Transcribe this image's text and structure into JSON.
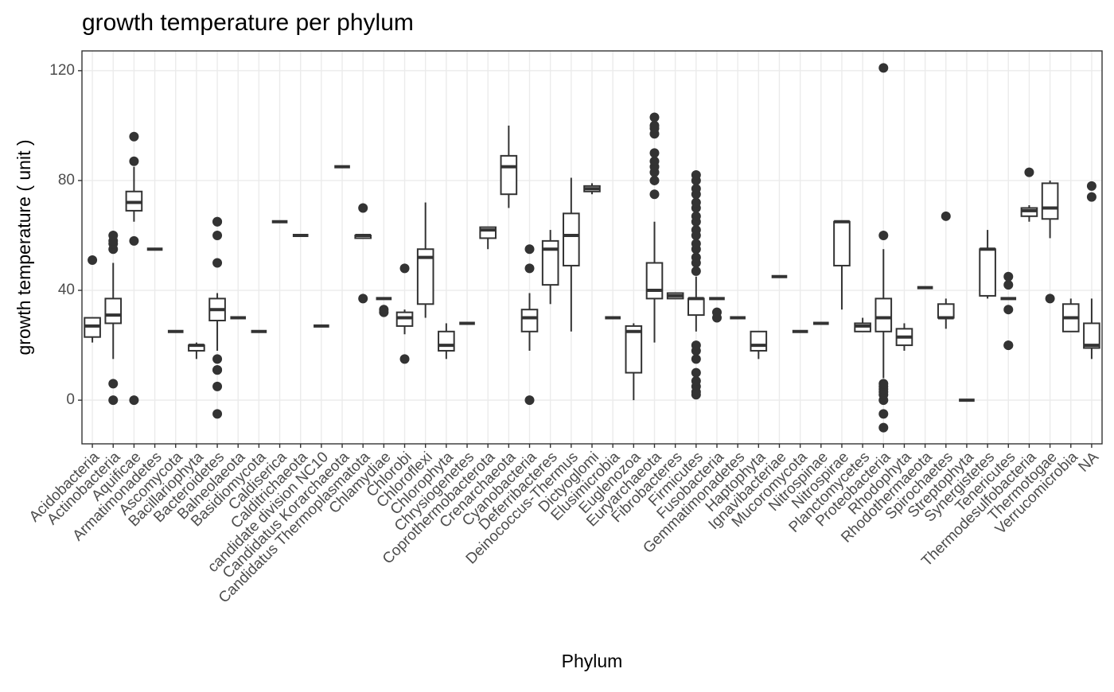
{
  "chart_data": {
    "type": "boxplot",
    "title": "growth temperature per phylum",
    "x_label": "Phylum",
    "y_label": "growth temperature ( unit )",
    "categories": [
      "Acidobacteria",
      "Actinobacteria",
      "Aquificae",
      "Armatimonadetes",
      "Ascomycota",
      "Bacillariophyta",
      "Bacteroidetes",
      "Balneolaeota",
      "Basidiomycota",
      "Caldiserica",
      "Calditrichaeota",
      "candidate division NC10",
      "Candidatus Korarchaeota",
      "Candidatus Thermoplasmatota",
      "Chlamydiae",
      "Chlorobi",
      "Chloroflexi",
      "Chlorophyta",
      "Chrysiogenetes",
      "Coprothermobacterota",
      "Crenarchaeota",
      "Cyanobacteria",
      "Deferribacteres",
      "Deinococcus-Thermus",
      "Dictyoglomi",
      "Elusimicrobia",
      "Euglenozoa",
      "Euryarchaeota",
      "Fibrobacteres",
      "Firmicutes",
      "Fusobacteria",
      "Gemmatimonadetes",
      "Haptophyta",
      "Ignavibacteriae",
      "Mucoromycota",
      "Nitrospinae",
      "Nitrospirae",
      "Planctomycetes",
      "Proteobacteria",
      "Rhodophyta",
      "Rhodothermaeota",
      "Spirochaetes",
      "Streptophyta",
      "Synergistetes",
      "Tenericutes",
      "Thermodesulfobacteria",
      "Thermotogae",
      "Verrucomicrobia",
      "NA"
    ],
    "stats": [
      [
        21,
        23,
        27,
        30,
        30
      ],
      [
        15,
        28,
        31,
        37,
        50
      ],
      [
        65,
        69,
        72,
        76,
        85
      ],
      [
        55,
        55,
        55,
        55,
        55
      ],
      [
        25,
        25,
        25,
        25,
        25
      ],
      [
        15,
        18,
        20,
        20,
        21
      ],
      [
        18,
        29,
        33,
        37,
        39
      ],
      [
        30,
        30,
        30,
        30,
        30
      ],
      [
        25,
        25,
        25,
        25,
        25
      ],
      [
        65,
        65,
        65,
        65,
        65
      ],
      [
        60,
        60,
        60,
        60,
        60
      ],
      [
        27,
        27,
        27,
        27,
        27
      ],
      [
        85,
        85,
        85,
        85,
        85
      ],
      [
        59,
        59,
        60,
        60,
        60
      ],
      [
        37,
        37,
        37,
        37,
        37
      ],
      [
        24,
        27,
        30,
        32,
        33
      ],
      [
        30,
        35,
        52,
        55,
        72
      ],
      [
        15,
        18,
        20,
        25,
        28
      ],
      [
        28,
        28,
        28,
        28,
        28
      ],
      [
        55,
        59,
        62,
        63,
        63
      ],
      [
        70,
        75,
        85,
        89,
        100
      ],
      [
        18,
        25,
        30,
        33,
        39
      ],
      [
        35,
        42,
        55,
        58,
        62
      ],
      [
        25,
        49,
        60,
        68,
        81
      ],
      [
        75,
        76,
        77,
        78,
        79
      ],
      [
        30,
        30,
        30,
        30,
        30
      ],
      [
        0,
        10,
        25,
        27,
        28
      ],
      [
        21,
        37,
        40,
        50,
        65
      ],
      [
        37,
        37,
        38,
        39,
        39
      ],
      [
        25,
        31,
        37,
        37,
        45
      ],
      [
        37,
        37,
        37,
        37,
        37
      ],
      [
        30,
        30,
        30,
        30,
        30
      ],
      [
        15,
        18,
        20,
        25,
        25
      ],
      [
        45,
        45,
        45,
        45,
        45
      ],
      [
        25,
        25,
        25,
        25,
        25
      ],
      [
        28,
        28,
        28,
        28,
        28
      ],
      [
        33,
        49,
        65,
        65,
        65
      ],
      [
        25,
        25,
        27,
        28,
        30
      ],
      [
        8,
        25,
        30,
        37,
        55
      ],
      [
        18,
        20,
        23,
        26,
        28
      ],
      [
        41,
        41,
        41,
        41,
        41
      ],
      [
        26,
        30,
        30,
        35,
        37
      ],
      [
        0,
        0,
        0,
        0,
        0
      ],
      [
        37,
        38,
        55,
        55,
        62
      ],
      [
        37,
        37,
        37,
        37,
        37
      ],
      [
        65,
        67,
        69,
        70,
        71
      ],
      [
        59,
        66,
        70,
        79,
        80
      ],
      [
        25,
        25,
        30,
        35,
        37
      ],
      [
        15,
        19,
        20,
        28,
        37
      ]
    ],
    "outliers": [
      [
        51
      ],
      [
        0,
        6,
        55,
        57,
        58,
        60
      ],
      [
        0,
        58,
        87,
        96
      ],
      [],
      [],
      [],
      [
        -5,
        5,
        11,
        11,
        15,
        50,
        60,
        65,
        65
      ],
      [],
      [],
      [],
      [],
      [],
      [],
      [
        37,
        70
      ],
      [
        32,
        33
      ],
      [
        15,
        48
      ],
      [],
      [],
      [],
      [],
      [],
      [
        0,
        48,
        55
      ],
      [],
      [],
      [],
      [],
      [],
      [
        75,
        80,
        83,
        85,
        87,
        90,
        97,
        99,
        100,
        103
      ],
      [],
      [
        2,
        3,
        5,
        7,
        10,
        15,
        18,
        20,
        47,
        50,
        52,
        55,
        57,
        60,
        62,
        65,
        67,
        70,
        72,
        75,
        77,
        80,
        82
      ],
      [
        30,
        32
      ],
      [],
      [],
      [],
      [],
      [],
      [],
      [],
      [
        -10,
        -5,
        0,
        2,
        3,
        4,
        5,
        6,
        60,
        121
      ],
      [],
      [],
      [
        67
      ],
      [],
      [],
      [
        20,
        20,
        33,
        42,
        45
      ],
      [
        83
      ],
      [
        37
      ],
      [],
      [
        74,
        78
      ]
    ],
    "color": "#333333",
    "ylim": [
      -15.9,
      127.2
    ],
    "yticks": [
      0,
      40,
      80,
      120
    ],
    "grid": true
  }
}
